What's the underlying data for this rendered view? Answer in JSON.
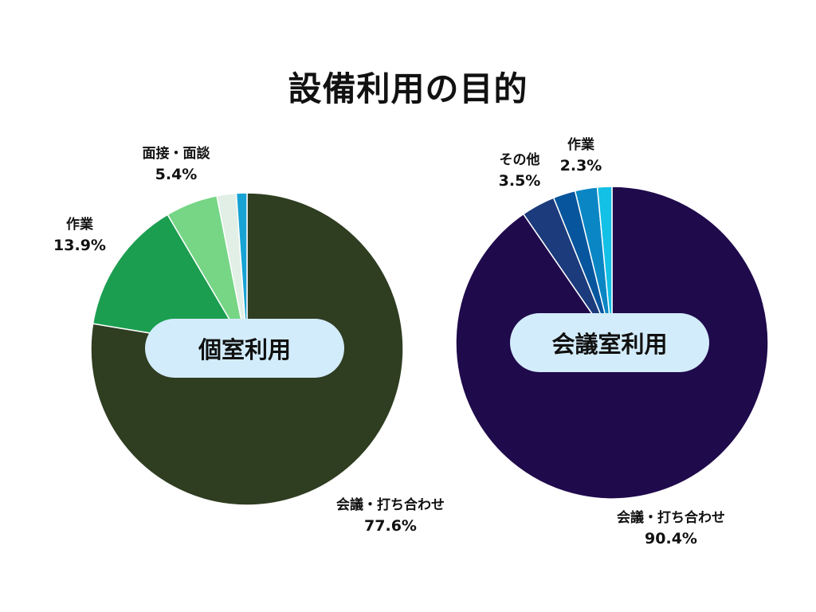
{
  "title": "設備利用の目的",
  "chart_data": [
    {
      "type": "pie",
      "title": "個室利用",
      "slices": [
        {
          "label": "会議・打ち合わせ",
          "value": 77.6,
          "display": "77.6%",
          "color": "#2f3d21"
        },
        {
          "label": "作業",
          "value": 13.9,
          "display": "13.9%",
          "color": "#1b9e50"
        },
        {
          "label": "面接・面談",
          "value": 5.4,
          "display": "5.4%",
          "color": "#76d686"
        },
        {
          "label": "",
          "value": 2.0,
          "display": "",
          "color": "#e1efe6"
        },
        {
          "label": "",
          "value": 1.1,
          "display": "",
          "color": "#17a3d4"
        }
      ]
    },
    {
      "type": "pie",
      "title": "会議室利用",
      "slices": [
        {
          "label": "会議・打ち合わせ",
          "value": 90.4,
          "display": "90.4%",
          "color": "#1f0a4c"
        },
        {
          "label": "その他",
          "value": 3.5,
          "display": "3.5%",
          "color": "#1c3b7c"
        },
        {
          "label": "",
          "value": 2.3,
          "display": "",
          "color": "#07559d"
        },
        {
          "label": "作業",
          "value": 2.3,
          "display": "2.3%",
          "color": "#0a86c4"
        },
        {
          "label": "",
          "value": 1.5,
          "display": "",
          "color": "#13c0e6"
        }
      ]
    }
  ]
}
